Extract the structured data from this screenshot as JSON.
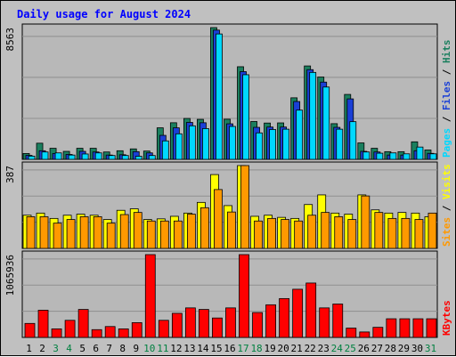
{
  "title": "Daily usage for August 2024",
  "colors": {
    "background": "#c0c0c0",
    "plot_bg": "#b8b8b8",
    "grid": "#8f8f8f",
    "title": "#0000ff",
    "hits": "#1a7f5e",
    "files": "#1a3fd6",
    "pages": "#00d8ff",
    "visits": "#ffff00",
    "sites": "#ff9900",
    "kbytes": "#ff0000",
    "day_label": "#000000",
    "weekend_label": "#008040"
  },
  "chart_data": [
    {
      "type": "bar",
      "name": "hits-files-pages",
      "max_label": "8563",
      "ylim": [
        0,
        8563
      ],
      "grid": true,
      "side_label": [
        "Pages",
        "Files",
        "Hits"
      ],
      "series": [
        {
          "name": "Hits",
          "values": [
            380,
            1050,
            720,
            520,
            720,
            720,
            480,
            560,
            680,
            540,
            2050,
            2380,
            2660,
            2600,
            8563,
            2610,
            6020,
            2460,
            2360,
            2370,
            4000,
            6070,
            5350,
            2320,
            4220,
            1070,
            720,
            500,
            500,
            1140,
            610
          ]
        },
        {
          "name": "Files",
          "values": [
            260,
            560,
            380,
            320,
            520,
            480,
            280,
            300,
            500,
            420,
            1560,
            2050,
            2400,
            2380,
            8400,
            2310,
            5700,
            2080,
            2100,
            2100,
            3760,
            5830,
            5020,
            2080,
            3930,
            520,
            480,
            280,
            280,
            560,
            390
          ]
        },
        {
          "name": "Pages",
          "values": [
            210,
            480,
            420,
            280,
            350,
            420,
            250,
            250,
            200,
            250,
            1200,
            1660,
            2180,
            2000,
            8150,
            2140,
            5500,
            1720,
            1940,
            1960,
            3200,
            5650,
            4700,
            1960,
            2450,
            480,
            400,
            420,
            360,
            800,
            360
          ]
        }
      ]
    },
    {
      "type": "bar",
      "name": "visits-sites",
      "max_label": "387",
      "ylim": [
        0,
        387
      ],
      "grid": true,
      "side_label": [
        "Sites",
        "Visits"
      ],
      "series": [
        {
          "name": "Visits",
          "values": [
            155,
            165,
            140,
            155,
            160,
            155,
            135,
            178,
            185,
            135,
            138,
            150,
            165,
            215,
            345,
            200,
            387,
            150,
            155,
            145,
            140,
            205,
            250,
            165,
            160,
            250,
            180,
            165,
            168,
            165,
            148
          ]
        },
        {
          "name": "Sites",
          "values": [
            148,
            148,
            118,
            135,
            148,
            148,
            118,
            158,
            168,
            128,
            128,
            128,
            160,
            190,
            275,
            170,
            387,
            128,
            140,
            135,
            128,
            155,
            168,
            148,
            135,
            245,
            168,
            140,
            140,
            135,
            165
          ]
        }
      ]
    },
    {
      "type": "bar",
      "name": "kbytes",
      "max_label": "1065936",
      "ylim": [
        0,
        1065936
      ],
      "grid": true,
      "side_label": [
        "KBytes"
      ],
      "series": [
        {
          "name": "KBytes",
          "values": [
            180000,
            350000,
            110000,
            220000,
            360000,
            100000,
            140000,
            110000,
            190000,
            1065936,
            220000,
            310000,
            380000,
            360000,
            250000,
            380000,
            1065936,
            320000,
            420000,
            500000,
            620000,
            700000,
            380000,
            430000,
            120000,
            70000,
            130000,
            240000,
            240000,
            240000,
            240000
          ]
        }
      ]
    }
  ],
  "days": [
    {
      "label": "1",
      "weekend": false
    },
    {
      "label": "2",
      "weekend": false
    },
    {
      "label": "3",
      "weekend": true
    },
    {
      "label": "4",
      "weekend": true
    },
    {
      "label": "5",
      "weekend": false
    },
    {
      "label": "6",
      "weekend": false
    },
    {
      "label": "7",
      "weekend": false
    },
    {
      "label": "8",
      "weekend": false
    },
    {
      "label": "9",
      "weekend": false
    },
    {
      "label": "10",
      "weekend": true
    },
    {
      "label": "11",
      "weekend": true
    },
    {
      "label": "12",
      "weekend": false
    },
    {
      "label": "13",
      "weekend": false
    },
    {
      "label": "14",
      "weekend": false
    },
    {
      "label": "15",
      "weekend": false
    },
    {
      "label": "16",
      "weekend": false
    },
    {
      "label": "17",
      "weekend": true
    },
    {
      "label": "18",
      "weekend": true
    },
    {
      "label": "19",
      "weekend": false
    },
    {
      "label": "20",
      "weekend": false
    },
    {
      "label": "21",
      "weekend": false
    },
    {
      "label": "22",
      "weekend": false
    },
    {
      "label": "23",
      "weekend": false
    },
    {
      "label": "24",
      "weekend": true
    },
    {
      "label": "25",
      "weekend": true
    },
    {
      "label": "26",
      "weekend": false
    },
    {
      "label": "27",
      "weekend": false
    },
    {
      "label": "28",
      "weekend": false
    },
    {
      "label": "29",
      "weekend": false
    },
    {
      "label": "30",
      "weekend": false
    },
    {
      "label": "31",
      "weekend": true
    }
  ]
}
